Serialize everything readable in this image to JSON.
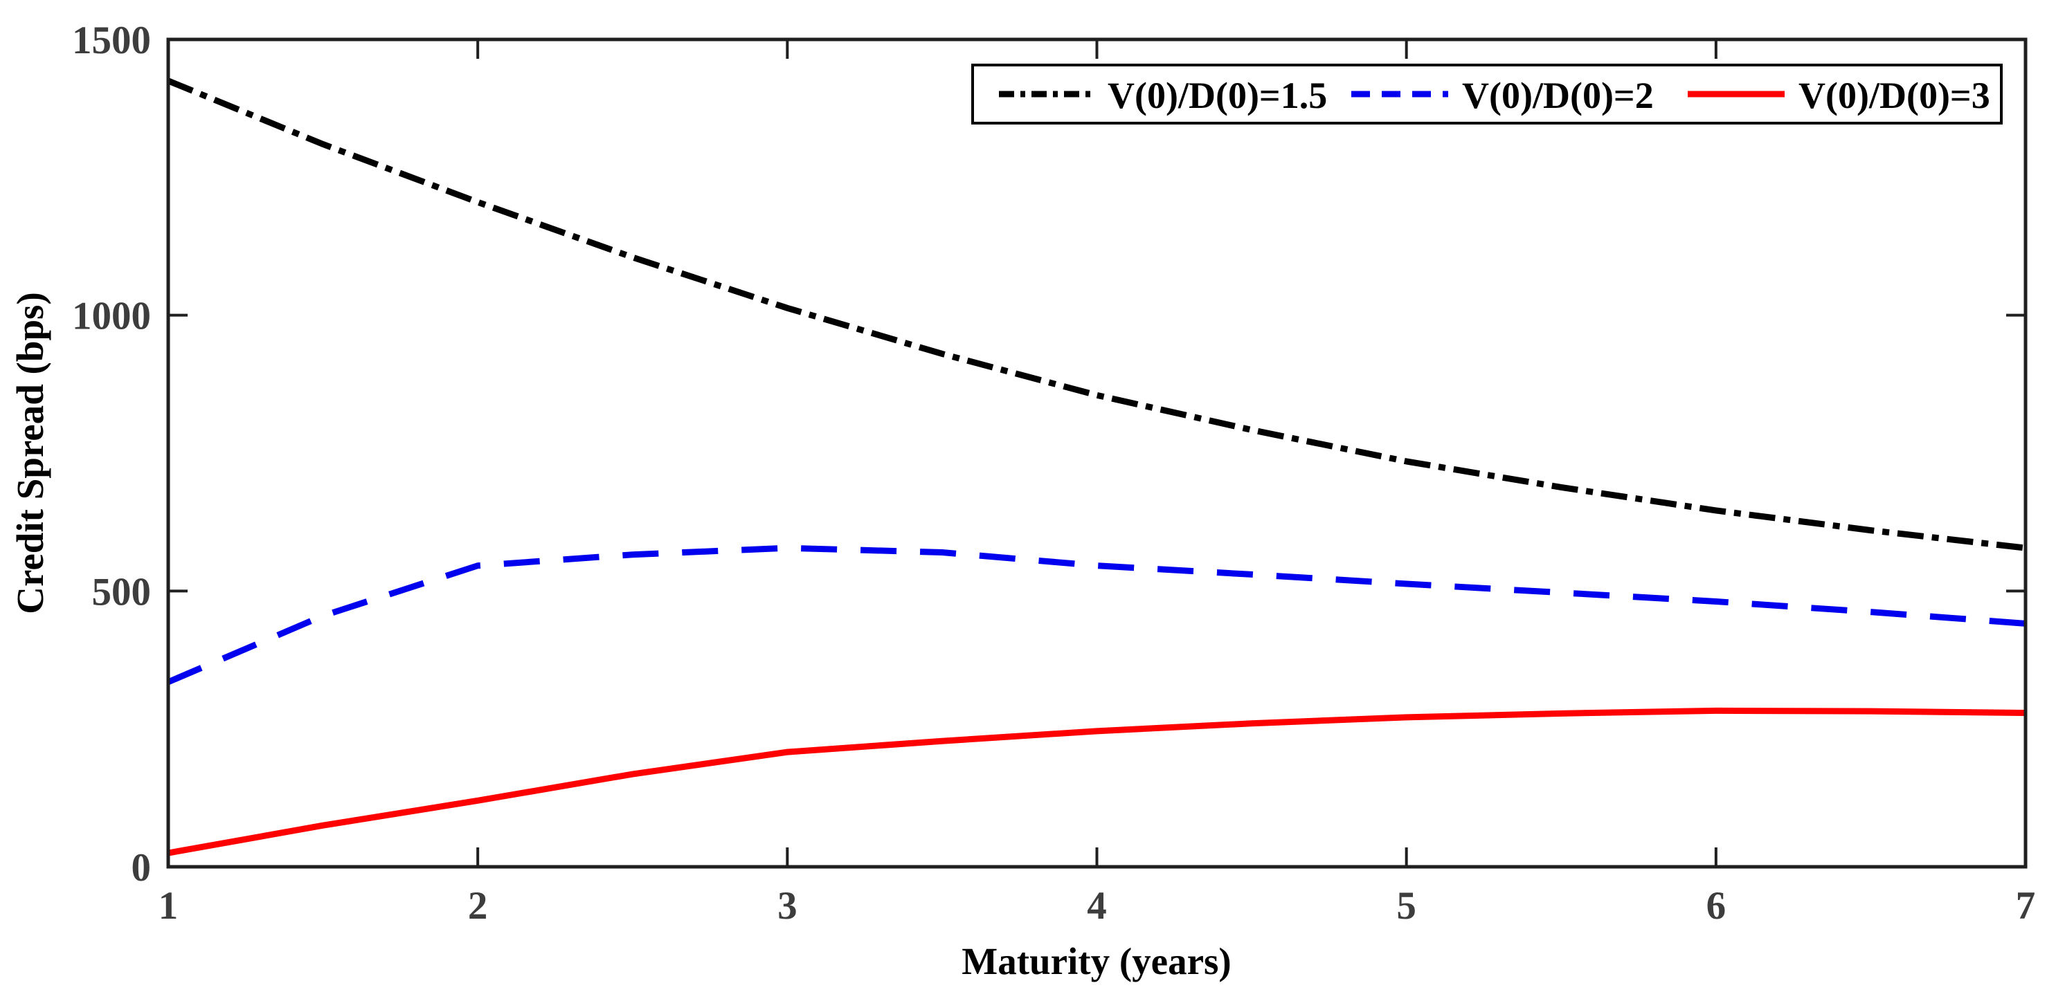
{
  "figure": {
    "background": "#ffffff"
  },
  "chart_data": {
    "type": "line",
    "title": "",
    "xlabel": "Maturity (years)",
    "ylabel": "Credit Spread (bps)",
    "xlim": [
      1,
      7
    ],
    "ylim": [
      0,
      1500
    ],
    "xticks": [
      1,
      2,
      3,
      4,
      5,
      6,
      7
    ],
    "yticks": [
      0,
      500,
      1000,
      1500
    ],
    "grid": false,
    "legend_position": "top-right-inside",
    "axis_color": "#1f1f1f",
    "tick_label_color": "#3d3d3d",
    "x": [
      1,
      1.5,
      2,
      2.5,
      3,
      3.5,
      4,
      4.5,
      5,
      5.5,
      6,
      6.5,
      7
    ],
    "series": [
      {
        "name": "V(0)/D(0)=1.5",
        "color": "#000000",
        "style": "dash-dot",
        "values": [
          1425,
          1310,
          1205,
          1105,
          1013,
          930,
          855,
          792,
          735,
          688,
          646,
          610,
          578
        ]
      },
      {
        "name": "V(0)/D(0)=2",
        "color": "#0000ee",
        "style": "dashed",
        "values": [
          335,
          455,
          546,
          566,
          578,
          570,
          546,
          530,
          513,
          497,
          481,
          462,
          441
        ]
      },
      {
        "name": "V(0)/D(0)=3",
        "color": "#ff0000",
        "style": "solid",
        "values": [
          25,
          75,
          120,
          168,
          208,
          228,
          246,
          260,
          271,
          278,
          283,
          282,
          279
        ]
      }
    ]
  }
}
